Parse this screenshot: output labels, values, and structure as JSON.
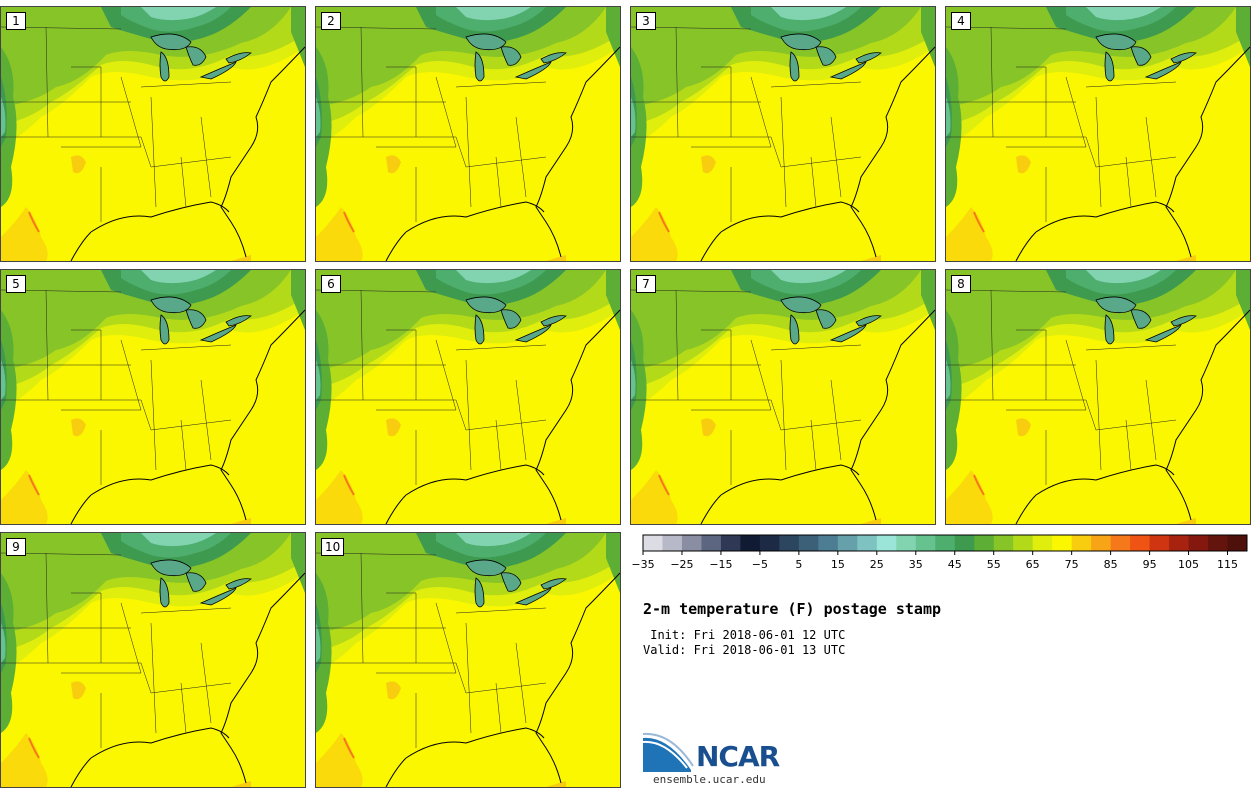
{
  "figure": {
    "title": "2-m temperature (F) postage stamp",
    "init": " Init: Fri 2018-06-01 12 UTC",
    "valid": "Valid: Fri 2018-06-01 13 UTC"
  },
  "panels": [
    {
      "label": "1"
    },
    {
      "label": "2"
    },
    {
      "label": "3"
    },
    {
      "label": "4"
    },
    {
      "label": "5"
    },
    {
      "label": "6"
    },
    {
      "label": "7"
    },
    {
      "label": "8"
    },
    {
      "label": "9"
    },
    {
      "label": "10"
    }
  ],
  "colorbar": {
    "min": -35,
    "max": 120,
    "step": 5,
    "tick_labels": [
      "−35",
      "−25",
      "−15",
      "−5",
      "5",
      "15",
      "25",
      "35",
      "45",
      "55",
      "65",
      "75",
      "85",
      "95",
      "105",
      "115"
    ],
    "colors": [
      "#dcdce4",
      "#b8b9c8",
      "#8a8ea3",
      "#5d6680",
      "#2f3955",
      "#111a33",
      "#1c2a46",
      "#2d4660",
      "#3d6079",
      "#4d7d92",
      "#66a0ab",
      "#7fc2c2",
      "#9ae5d7",
      "#82d4b1",
      "#66c38f",
      "#4eae6e",
      "#3d9a4f",
      "#5cae34",
      "#86c428",
      "#b3da19",
      "#dfee0c",
      "#fbf700",
      "#f9cd0f",
      "#f7a416",
      "#f5791a",
      "#ef5414",
      "#cf3510",
      "#a82210",
      "#85180e",
      "#63140c",
      "#4e100a"
    ]
  },
  "logo": {
    "name": "NCAR",
    "url": "ensemble.ucar.edu"
  }
}
